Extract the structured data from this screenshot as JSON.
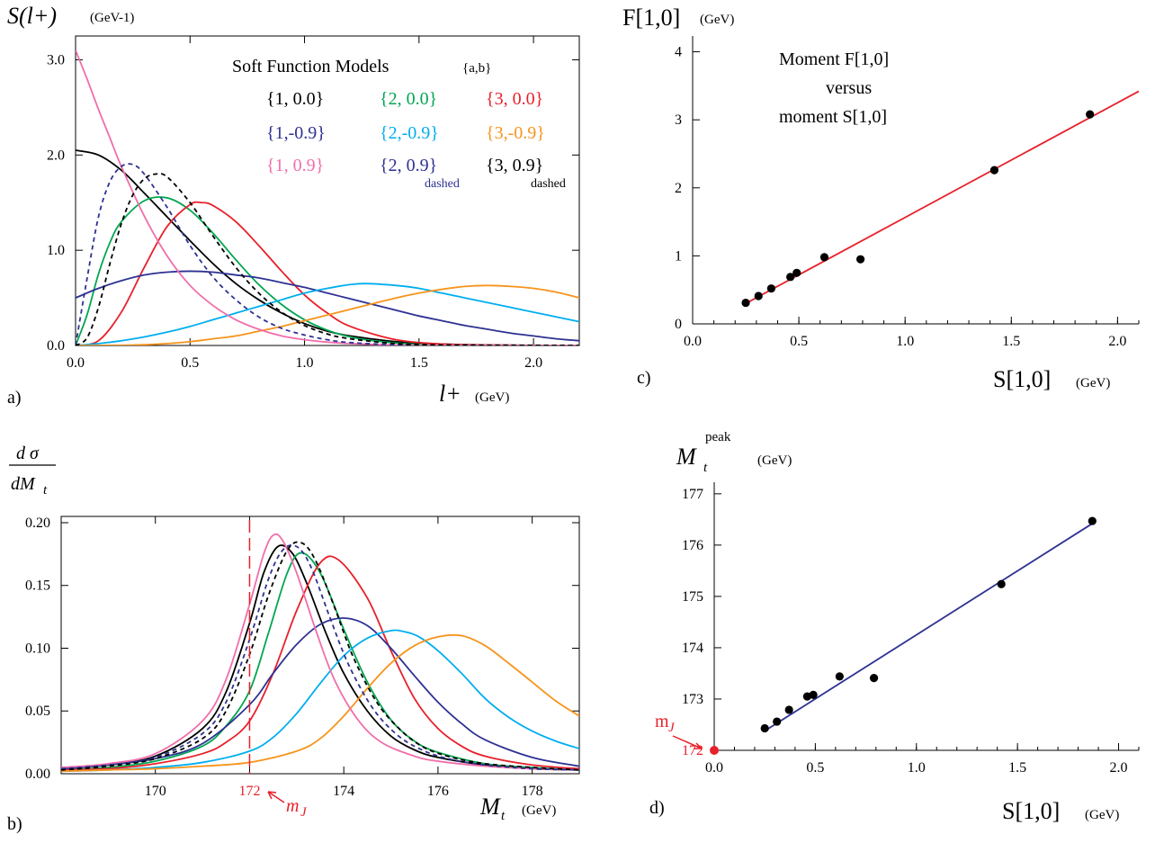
{
  "chart_data": [
    {
      "panel_label": "a)",
      "type": "line",
      "title": "Soft Function Models",
      "title_note": "{a,b}",
      "ylabel": "S(l+)",
      "ylabel_unit": "(GeV-1)",
      "xlabel": "l+",
      "xlabel_unit": "(GeV)",
      "xlim": [
        0,
        2.2
      ],
      "ylim": [
        0,
        3.25
      ],
      "xticks": [
        "0.0",
        "0.5",
        "1.0",
        "1.5",
        "2.0"
      ],
      "yticks": [
        "0.0",
        "1.0",
        "2.0",
        "3.0"
      ],
      "series": [
        {
          "name": "{1, 0.0}",
          "color": "#000000",
          "dashed": false,
          "x": [
            0,
            0.1,
            0.2,
            0.3,
            0.4,
            0.5,
            0.6,
            0.7,
            0.8,
            0.9,
            1.0,
            1.1,
            1.2,
            1.4,
            1.6,
            1.8,
            2.0,
            2.2
          ],
          "y": [
            2.05,
            2.0,
            1.84,
            1.6,
            1.35,
            1.1,
            0.86,
            0.65,
            0.48,
            0.34,
            0.23,
            0.15,
            0.1,
            0.04,
            0.015,
            0.005,
            0.002,
            0
          ]
        },
        {
          "name": "{2, 0.0}",
          "color": "#00a651",
          "dashed": false,
          "x": [
            0,
            0.05,
            0.1,
            0.15,
            0.2,
            0.3,
            0.4,
            0.5,
            0.6,
            0.7,
            0.8,
            0.9,
            1.0,
            1.1,
            1.2,
            1.3,
            1.5,
            1.7,
            2.0,
            2.2
          ],
          "y": [
            0,
            0.32,
            0.75,
            1.08,
            1.3,
            1.52,
            1.55,
            1.42,
            1.18,
            0.9,
            0.64,
            0.43,
            0.27,
            0.16,
            0.09,
            0.05,
            0.01,
            0.003,
            0,
            0
          ]
        },
        {
          "name": "{3, 0.0}",
          "color": "#e8202a",
          "dashed": false,
          "x": [
            0,
            0.1,
            0.2,
            0.3,
            0.4,
            0.5,
            0.55,
            0.6,
            0.7,
            0.8,
            0.9,
            1.0,
            1.1,
            1.2,
            1.4,
            1.6,
            1.8,
            2.0,
            2.2
          ],
          "y": [
            0,
            0.05,
            0.35,
            0.82,
            1.25,
            1.48,
            1.5,
            1.47,
            1.3,
            1.05,
            0.78,
            0.53,
            0.34,
            0.2,
            0.06,
            0.015,
            0.004,
            0.001,
            0
          ]
        },
        {
          "name": "{1,-0.9}",
          "color": "#2e3192",
          "dashed": false,
          "x": [
            0,
            0.1,
            0.2,
            0.3,
            0.4,
            0.5,
            0.6,
            0.7,
            0.8,
            0.9,
            1.0,
            1.1,
            1.2,
            1.3,
            1.4,
            1.5,
            1.6,
            1.7,
            1.8,
            1.9,
            2.0,
            2.1,
            2.2
          ],
          "y": [
            0.5,
            0.6,
            0.68,
            0.74,
            0.77,
            0.78,
            0.77,
            0.74,
            0.71,
            0.66,
            0.61,
            0.55,
            0.49,
            0.43,
            0.37,
            0.31,
            0.26,
            0.21,
            0.17,
            0.13,
            0.1,
            0.07,
            0.05
          ]
        },
        {
          "name": "{2,-0.9}",
          "color": "#00aeef",
          "dashed": false,
          "x": [
            0,
            0.1,
            0.2,
            0.3,
            0.4,
            0.5,
            0.6,
            0.7,
            0.8,
            0.9,
            1.0,
            1.1,
            1.2,
            1.27,
            1.4,
            1.5,
            1.6,
            1.7,
            1.8,
            1.9,
            2.0,
            2.1,
            2.2
          ],
          "y": [
            0,
            0.02,
            0.05,
            0.09,
            0.14,
            0.2,
            0.27,
            0.34,
            0.41,
            0.48,
            0.55,
            0.6,
            0.64,
            0.65,
            0.63,
            0.6,
            0.55,
            0.5,
            0.45,
            0.4,
            0.35,
            0.3,
            0.25
          ]
        },
        {
          "name": "{3,-0.9}",
          "color": "#f7941d",
          "dashed": false,
          "x": [
            0,
            0.2,
            0.3,
            0.4,
            0.5,
            0.6,
            0.7,
            0.8,
            0.9,
            1.0,
            1.1,
            1.2,
            1.3,
            1.4,
            1.5,
            1.6,
            1.7,
            1.8,
            1.9,
            2.0,
            2.1,
            2.2
          ],
          "y": [
            0,
            0.002,
            0.008,
            0.02,
            0.04,
            0.07,
            0.1,
            0.15,
            0.2,
            0.26,
            0.32,
            0.38,
            0.44,
            0.5,
            0.55,
            0.59,
            0.62,
            0.63,
            0.62,
            0.6,
            0.56,
            0.5
          ]
        },
        {
          "name": "{1, 0.9}",
          "color": "#f06eaa",
          "dashed": false,
          "x": [
            0,
            0.05,
            0.1,
            0.15,
            0.2,
            0.3,
            0.4,
            0.5,
            0.6,
            0.7,
            0.8,
            0.9,
            1.0,
            1.1,
            1.2,
            1.4,
            1.6,
            1.8,
            2.0,
            2.2
          ],
          "y": [
            3.1,
            2.8,
            2.48,
            2.18,
            1.88,
            1.36,
            0.94,
            0.63,
            0.42,
            0.27,
            0.17,
            0.1,
            0.06,
            0.035,
            0.02,
            0.005,
            0.002,
            0,
            0,
            0
          ]
        },
        {
          "name": "{2, 0.9}",
          "color": "#2e3192",
          "dashed": true,
          "x": [
            0,
            0.05,
            0.1,
            0.15,
            0.2,
            0.25,
            0.3,
            0.4,
            0.5,
            0.6,
            0.7,
            0.8,
            0.9,
            1.0,
            1.1,
            1.2,
            1.4,
            1.6,
            1.8,
            2.2
          ],
          "y": [
            0,
            0.7,
            1.35,
            1.72,
            1.88,
            1.9,
            1.8,
            1.45,
            1.05,
            0.72,
            0.48,
            0.3,
            0.18,
            0.11,
            0.06,
            0.03,
            0.008,
            0.002,
            0,
            0
          ]
        },
        {
          "name": "{3, 0.9}",
          "color": "#000000",
          "dashed": true,
          "x": [
            0,
            0.05,
            0.1,
            0.15,
            0.2,
            0.25,
            0.3,
            0.35,
            0.4,
            0.5,
            0.6,
            0.7,
            0.8,
            0.9,
            1.0,
            1.1,
            1.2,
            1.4,
            1.6,
            2.2
          ],
          "y": [
            0,
            0.08,
            0.4,
            0.86,
            1.28,
            1.58,
            1.75,
            1.8,
            1.77,
            1.5,
            1.15,
            0.82,
            0.55,
            0.35,
            0.21,
            0.12,
            0.07,
            0.02,
            0.005,
            0
          ]
        }
      ],
      "legend_notes": {
        "{2, 0.9}": "dashed",
        "{3, 0.9}": "dashed"
      }
    },
    {
      "panel_label": "b)",
      "type": "line",
      "ylabel_num": "d σ",
      "ylabel_den": "dM",
      "ylabel_den_sub": "t",
      "xlabel": "M",
      "xlabel_sub": "t",
      "xlabel_unit": "(GeV)",
      "xlim": [
        168,
        179
      ],
      "ylim": [
        0,
        0.205
      ],
      "xticks": [
        "170",
        "172",
        "174",
        "176",
        "178"
      ],
      "yticks": [
        "0.00",
        "0.05",
        "0.10",
        "0.15",
        "0.20"
      ],
      "marker": {
        "x": 172,
        "label": "m",
        "label_sub": "J",
        "color": "#e8202a"
      },
      "series": [
        {
          "name": "{1, 0.0}",
          "color": "#000000",
          "dashed": false,
          "x": [
            168,
            169,
            170,
            171,
            171.5,
            172,
            172.3,
            172.6,
            172.9,
            173.2,
            173.6,
            174,
            174.5,
            175,
            175.5,
            176,
            177,
            178,
            179
          ],
          "y": [
            0.004,
            0.007,
            0.014,
            0.036,
            0.065,
            0.12,
            0.16,
            0.181,
            0.176,
            0.153,
            0.114,
            0.08,
            0.05,
            0.03,
            0.019,
            0.013,
            0.007,
            0.004,
            0.003
          ]
        },
        {
          "name": "{2, 0.0}",
          "color": "#00a651",
          "dashed": false,
          "x": [
            168,
            169,
            170,
            171,
            171.5,
            172,
            172.4,
            172.8,
            173.1,
            173.5,
            174,
            174.5,
            175,
            175.5,
            176,
            177,
            178,
            179
          ],
          "y": [
            0.003,
            0.005,
            0.01,
            0.022,
            0.038,
            0.066,
            0.112,
            0.16,
            0.176,
            0.16,
            0.115,
            0.073,
            0.043,
            0.026,
            0.017,
            0.008,
            0.005,
            0.003
          ]
        },
        {
          "name": "{3, 0.0}",
          "color": "#e8202a",
          "dashed": false,
          "x": [
            168,
            169,
            170,
            171,
            171.5,
            172,
            172.5,
            173,
            173.5,
            173.9,
            174.5,
            175,
            175.5,
            176,
            176.5,
            177,
            178,
            179
          ],
          "y": [
            0.003,
            0.004,
            0.008,
            0.016,
            0.025,
            0.042,
            0.08,
            0.13,
            0.168,
            0.17,
            0.14,
            0.098,
            0.06,
            0.036,
            0.022,
            0.014,
            0.007,
            0.004
          ]
        },
        {
          "name": "{1,-0.9}",
          "color": "#2e3192",
          "dashed": false,
          "x": [
            168,
            169,
            170,
            171,
            172,
            172.5,
            173,
            173.5,
            174,
            174.5,
            175,
            175.5,
            176,
            176.5,
            177,
            178,
            179
          ],
          "y": [
            0.004,
            0.007,
            0.012,
            0.024,
            0.055,
            0.08,
            0.103,
            0.119,
            0.124,
            0.118,
            0.1,
            0.078,
            0.057,
            0.04,
            0.027,
            0.013,
            0.006
          ]
        },
        {
          "name": "{2,-0.9}",
          "color": "#00aeef",
          "dashed": false,
          "x": [
            168,
            169,
            170,
            171,
            172,
            172.5,
            173,
            173.5,
            174,
            174.5,
            175,
            175.3,
            175.6,
            176,
            176.5,
            177,
            177.5,
            178,
            178.5,
            179
          ],
          "y": [
            0.002,
            0.003,
            0.005,
            0.009,
            0.018,
            0.029,
            0.048,
            0.072,
            0.094,
            0.108,
            0.114,
            0.113,
            0.109,
            0.098,
            0.08,
            0.06,
            0.045,
            0.034,
            0.026,
            0.02
          ]
        },
        {
          "name": "{3,-0.9}",
          "color": "#f7941d",
          "dashed": false,
          "x": [
            168,
            169,
            170,
            171,
            172,
            173,
            173.5,
            174,
            174.5,
            175,
            175.5,
            176,
            176.5,
            177,
            177.5,
            178,
            178.5,
            179
          ],
          "y": [
            0.002,
            0.003,
            0.004,
            0.006,
            0.009,
            0.018,
            0.028,
            0.046,
            0.068,
            0.088,
            0.102,
            0.109,
            0.11,
            0.102,
            0.088,
            0.073,
            0.058,
            0.046
          ]
        },
        {
          "name": "{1, 0.9}",
          "color": "#f06eaa",
          "dashed": false,
          "x": [
            168,
            169,
            170,
            171,
            171.5,
            172,
            172.3,
            172.5,
            172.7,
            173,
            173.4,
            173.8,
            174.3,
            174.8,
            175.5,
            176,
            177,
            178,
            179
          ],
          "y": [
            0.005,
            0.008,
            0.016,
            0.042,
            0.075,
            0.135,
            0.175,
            0.19,
            0.186,
            0.16,
            0.115,
            0.075,
            0.043,
            0.025,
            0.014,
            0.01,
            0.006,
            0.004,
            0.003
          ]
        },
        {
          "name": "{2, 0.9}",
          "color": "#2e3192",
          "dashed": true,
          "x": [
            168,
            169,
            170,
            171,
            171.5,
            172,
            172.4,
            172.7,
            173,
            173.3,
            173.7,
            174.1,
            174.6,
            175.1,
            175.6,
            176.2,
            177,
            178,
            179
          ],
          "y": [
            0.004,
            0.007,
            0.013,
            0.032,
            0.057,
            0.107,
            0.155,
            0.178,
            0.181,
            0.165,
            0.125,
            0.087,
            0.053,
            0.032,
            0.02,
            0.012,
            0.007,
            0.004,
            0.003
          ]
        },
        {
          "name": "{3, 0.9}",
          "color": "#000000",
          "dashed": true,
          "x": [
            168,
            169,
            170,
            171,
            171.5,
            172,
            172.4,
            172.8,
            173.1,
            173.4,
            173.8,
            174.2,
            174.7,
            175.2,
            175.7,
            176.3,
            177,
            178,
            179
          ],
          "y": [
            0.003,
            0.006,
            0.012,
            0.028,
            0.05,
            0.095,
            0.142,
            0.178,
            0.184,
            0.17,
            0.133,
            0.093,
            0.057,
            0.035,
            0.021,
            0.013,
            0.008,
            0.005,
            0.003
          ]
        }
      ]
    },
    {
      "panel_label": "c)",
      "type": "scatter",
      "annotation": [
        "Moment  F[1,0]",
        "versus",
        "moment  S[1,0]"
      ],
      "ylabel": "F[1,0]",
      "ylabel_unit": "(GeV)",
      "xlabel": "S[1,0]",
      "xlabel_unit": "(GeV)",
      "xlim": [
        0,
        2.1
      ],
      "ylim": [
        0,
        4.1
      ],
      "xticks": [
        "0.0",
        "0.5",
        "1.0",
        "1.5",
        "2.0"
      ],
      "yticks": [
        "0",
        "1",
        "2",
        "3",
        "4"
      ],
      "points": {
        "x": [
          0.25,
          0.31,
          0.37,
          0.46,
          0.49,
          0.62,
          0.79,
          1.42,
          1.87
        ],
        "y": [
          0.31,
          0.41,
          0.52,
          0.69,
          0.75,
          0.98,
          0.95,
          2.26,
          3.08
        ]
      },
      "fit_line": {
        "x": [
          0.25,
          2.1
        ],
        "y": [
          0.3,
          3.42
        ],
        "color": "#e8202a"
      }
    },
    {
      "panel_label": "d)",
      "type": "scatter",
      "ylabel": "M",
      "ylabel_sub": "t",
      "ylabel_sup": "peak",
      "ylabel_unit": "(GeV)",
      "xlabel": "S[1,0]",
      "xlabel_unit": "(GeV)",
      "xlim": [
        0,
        2.1
      ],
      "ylim": [
        172,
        177.05
      ],
      "xticks": [
        "0.0",
        "0.5",
        "1.0",
        "1.5",
        "2.0"
      ],
      "yticks": [
        "172",
        "173",
        "174",
        "175",
        "176",
        "177"
      ],
      "points": {
        "x": [
          0.25,
          0.31,
          0.37,
          0.46,
          0.49,
          0.62,
          0.79,
          1.42,
          1.87
        ],
        "y": [
          172.43,
          172.56,
          172.79,
          173.05,
          173.08,
          173.44,
          173.41,
          175.24,
          176.47
        ]
      },
      "fit_line": {
        "x": [
          0.25,
          1.87
        ],
        "y": [
          172.38,
          176.42
        ],
        "color": "#2e3192"
      },
      "marker": {
        "x": 0,
        "y": 172,
        "label": "m",
        "label_sub": "J",
        "color": "#e8202a"
      }
    }
  ]
}
